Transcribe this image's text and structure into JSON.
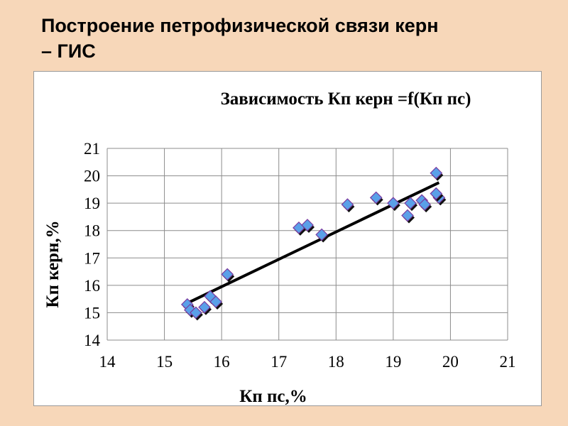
{
  "slide": {
    "title_line1": "Построение петрофизической связи керн",
    "title_line2": "– ГИС"
  },
  "chart_data": {
    "type": "scatter",
    "title": "Зависимость Кп керн =f(Кп пс)",
    "xlabel": "Кп пс,%",
    "ylabel": "Кп керн,%",
    "xlim": [
      14,
      21
    ],
    "ylim": [
      14,
      21
    ],
    "x_ticks": [
      "14",
      "15",
      "16",
      "17",
      "18",
      "19",
      "20",
      "21"
    ],
    "y_ticks": [
      "14",
      "15",
      "16",
      "17",
      "18",
      "19",
      "20",
      "21"
    ],
    "grid": true,
    "legend": "none",
    "marker_color": "#5aa0e8",
    "marker_edge": "#7a3aa0",
    "trendline": {
      "type": "linear",
      "x": [
        15.4,
        19.8
      ],
      "y": [
        15.35,
        19.75
      ],
      "color": "#000000"
    },
    "series": [
      {
        "x": [
          15.4,
          15.45,
          15.55,
          15.7,
          15.8,
          15.9,
          16.1,
          17.35,
          17.5,
          17.75,
          18.2,
          18.7,
          19.0,
          19.25,
          19.3,
          19.5,
          19.55,
          19.75,
          19.8,
          19.75
        ],
        "y": [
          15.3,
          15.1,
          15.0,
          15.2,
          15.6,
          15.4,
          16.4,
          18.1,
          18.2,
          17.85,
          18.95,
          19.2,
          19.0,
          18.55,
          19.0,
          19.1,
          18.95,
          20.1,
          19.2,
          19.35
        ]
      }
    ]
  }
}
